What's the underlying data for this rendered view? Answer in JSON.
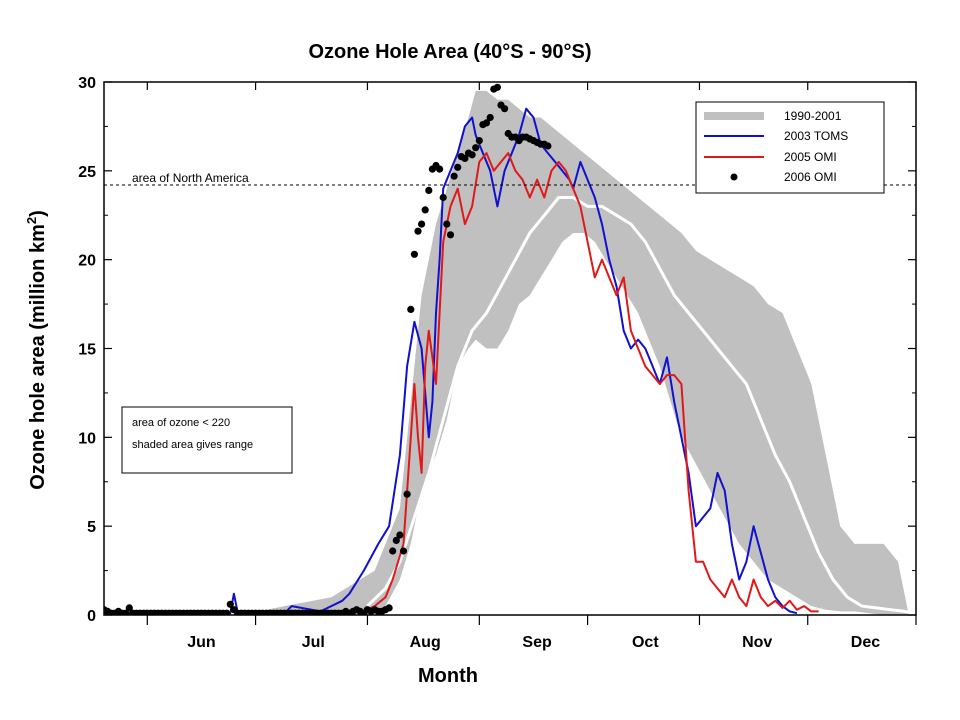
{
  "chart_data": {
    "type": "line",
    "title": "Ozone Hole Area (40°S - 90°S)",
    "xlabel": "Month",
    "ylabel_main": "Ozone hole area (million km",
    "ylabel_sup": "2",
    "ylabel_close": ")",
    "ylim": [
      0,
      30
    ],
    "xlim": [
      140,
      365
    ],
    "yticks": [
      "0",
      "5",
      "10",
      "15",
      "20",
      "25",
      "30"
    ],
    "months": [
      "Jun",
      "Jul",
      "Aug",
      "Sep",
      "Oct",
      "Nov",
      "Dec"
    ],
    "month_center_days": [
      167,
      198,
      229,
      260,
      290,
      321,
      351
    ],
    "month_boundary_days": [
      152,
      182,
      213,
      244,
      274,
      305,
      335,
      365
    ],
    "legend_position": "top-right",
    "legend": [
      "1990-2001",
      "2003 TOMS",
      "2005 OMI",
      "2006 OMI"
    ],
    "reference_line": {
      "value": 24.2,
      "label": "area of North America"
    },
    "note": [
      "area of ozone < 220",
      "shaded area gives range"
    ],
    "colors": {
      "range": "#c0c0c0",
      "mean": "#ffffff",
      "toms2003": "#1010d0",
      "omi2005": "#e01818",
      "omi2006": "#000000"
    },
    "series": [
      {
        "name": "1990-2001",
        "kind": "range",
        "x": [
          168,
          178,
          190,
          203,
          215,
          218,
          222,
          225,
          228,
          232,
          235,
          238,
          241,
          243,
          246,
          249,
          252,
          255,
          258,
          261,
          264,
          267,
          270,
          273,
          276,
          279,
          282,
          285,
          288,
          291,
          294,
          297,
          300,
          304,
          308,
          312,
          316,
          320,
          324,
          328,
          332,
          336,
          340,
          344,
          348,
          352,
          356,
          360,
          363
        ],
        "lower": [
          0,
          0,
          0,
          0,
          0,
          0.5,
          2,
          4,
          7,
          9,
          11,
          14,
          15,
          15.5,
          15,
          15,
          16,
          17.5,
          18,
          19,
          20,
          21,
          21.5,
          21.5,
          21,
          20,
          19,
          18,
          17,
          15.5,
          14,
          12,
          10,
          8.5,
          7,
          5.5,
          4,
          3,
          2,
          1.5,
          1,
          0.5,
          0.3,
          0.2,
          0.2,
          0.1,
          0,
          0,
          0
        ],
        "upper": [
          0,
          0,
          0.5,
          1,
          2.5,
          4,
          6,
          12,
          18,
          22,
          24,
          26,
          28,
          29.5,
          29.5,
          29,
          29,
          28.5,
          28,
          28,
          27.5,
          27,
          26.5,
          26,
          25.5,
          25,
          24.5,
          24,
          23.5,
          23,
          22.5,
          22,
          21.5,
          20.5,
          20,
          19.5,
          19,
          18.5,
          17.5,
          17,
          15,
          13,
          9,
          5,
          4,
          4,
          4,
          3,
          0
        ]
      },
      {
        "name": "1990-2001 mean",
        "kind": "mean",
        "x": [
          213,
          218,
          222,
          226,
          230,
          234,
          238,
          242,
          246,
          250,
          254,
          258,
          262,
          266,
          270,
          274,
          278,
          282,
          286,
          290,
          294,
          298,
          302,
          306,
          310,
          314,
          318,
          322,
          326,
          330,
          334,
          338,
          342,
          346,
          350,
          354,
          358,
          362,
          364
        ],
        "y": [
          0.5,
          1.5,
          3,
          5.5,
          8,
          11,
          14,
          16,
          17,
          18.5,
          20,
          21.5,
          22.5,
          23.5,
          23.5,
          23,
          23,
          22.5,
          22,
          21,
          19.5,
          18,
          17,
          16,
          15,
          14,
          13,
          11,
          9,
          7.5,
          5.5,
          3.5,
          2,
          1,
          0.5,
          0.4,
          0.3,
          0.2,
          0.1
        ]
      },
      {
        "name": "2003 TOMS",
        "kind": "line",
        "x": [
          140,
          165,
          175,
          176,
          177,
          185,
          190,
          192,
          200,
          206,
          208,
          212,
          216,
          219,
          222,
          224,
          226,
          228,
          230,
          231,
          232,
          233,
          234,
          236,
          238,
          240,
          242,
          243,
          245,
          247,
          249,
          251,
          253,
          255,
          257,
          259,
          261,
          263,
          265,
          267,
          269,
          270,
          272,
          274,
          276,
          278,
          280,
          282,
          284,
          286,
          288,
          290,
          292,
          294,
          296,
          298,
          300,
          302,
          304,
          306,
          308,
          310,
          312,
          314,
          316,
          318,
          320,
          322,
          324,
          326,
          328,
          330,
          332
        ],
        "y": [
          0.1,
          0.1,
          0.1,
          1.2,
          0.2,
          0.1,
          0.1,
          0.5,
          0.2,
          0.8,
          1.2,
          2.5,
          4,
          5,
          9,
          14,
          16.5,
          15,
          10,
          12,
          17,
          20,
          24,
          25,
          26,
          27.5,
          28,
          27,
          26,
          25,
          23,
          25,
          26,
          27,
          28.5,
          28,
          26.5,
          26,
          25.5,
          25,
          24.5,
          24,
          25.5,
          24.5,
          23.5,
          22,
          20,
          18.5,
          16,
          15,
          15.5,
          15,
          14,
          13,
          14.5,
          12,
          10,
          8,
          5,
          5.5,
          6,
          8,
          7,
          4,
          2,
          3,
          5,
          3.5,
          2,
          1,
          0.5,
          0.2,
          0.1
        ]
      },
      {
        "name": "2005 OMI",
        "kind": "line",
        "x": [
          212,
          215,
          218,
          220,
          223,
          225,
          226,
          227,
          228,
          229,
          230,
          232,
          233,
          234,
          236,
          238,
          240,
          242,
          244,
          246,
          248,
          250,
          252,
          254,
          256,
          258,
          260,
          262,
          264,
          266,
          268,
          270,
          272,
          274,
          276,
          278,
          280,
          282,
          284,
          286,
          288,
          290,
          292,
          294,
          296,
          298,
          300,
          302,
          304,
          306,
          308,
          310,
          312,
          314,
          316,
          318,
          320,
          322,
          324,
          326,
          328,
          330,
          332,
          334,
          336,
          338
        ],
        "y": [
          0.2,
          0.5,
          1,
          2,
          4,
          10,
          13,
          10,
          8,
          14,
          16,
          13,
          17,
          21,
          23,
          24,
          22,
          23,
          25.5,
          26,
          25,
          25.5,
          26,
          25,
          24.5,
          23.5,
          24.5,
          23.5,
          25,
          25.5,
          25,
          24,
          23,
          21,
          19,
          20,
          19,
          18,
          19,
          16,
          15,
          14,
          13.5,
          13,
          13.5,
          13.5,
          13,
          7,
          3,
          3,
          2,
          1.5,
          1,
          2,
          1,
          0.5,
          2,
          1,
          0.5,
          0.8,
          0.4,
          0.8,
          0.3,
          0.5,
          0.2,
          0.2
        ]
      },
      {
        "name": "2006 OMI",
        "kind": "scatter",
        "x": [
          140,
          141,
          142,
          143,
          144,
          145,
          146,
          147,
          148,
          149,
          150,
          151,
          152,
          153,
          154,
          155,
          156,
          157,
          158,
          159,
          160,
          161,
          162,
          163,
          164,
          165,
          166,
          167,
          168,
          169,
          170,
          171,
          172,
          173,
          174,
          175,
          176,
          177,
          178,
          179,
          180,
          181,
          182,
          183,
          184,
          185,
          186,
          187,
          188,
          189,
          190,
          191,
          192,
          193,
          194,
          195,
          196,
          197,
          198,
          199,
          200,
          201,
          202,
          203,
          204,
          205,
          206,
          207,
          208,
          209,
          210,
          211,
          212,
          213,
          214,
          215,
          216,
          217,
          218,
          219,
          220,
          221,
          222,
          223,
          224,
          225,
          226,
          227,
          228,
          229,
          230,
          231,
          232,
          233,
          234,
          235,
          236,
          237,
          238,
          239,
          240,
          241,
          242,
          243,
          244,
          245,
          246,
          247,
          248,
          249,
          250,
          251,
          252,
          253,
          254,
          255,
          256,
          257,
          258,
          259,
          260,
          261,
          262,
          263
        ],
        "y": [
          0.3,
          0.2,
          0.1,
          0.1,
          0.2,
          0.1,
          0.1,
          0.4,
          0.1,
          0.1,
          0.1,
          0.1,
          0.1,
          0.1,
          0.1,
          0.1,
          0.1,
          0.1,
          0.1,
          0.1,
          0.1,
          0.1,
          0.1,
          0.1,
          0.1,
          0.1,
          0.1,
          0.1,
          0.1,
          0.1,
          0.1,
          0.1,
          0.1,
          0.1,
          0.1,
          0.6,
          0.3,
          0.1,
          0.1,
          0.1,
          0.1,
          0.1,
          0.1,
          0.1,
          0.1,
          0.1,
          0.1,
          0.1,
          0.1,
          0.1,
          0.1,
          0.1,
          0.1,
          0.1,
          0.1,
          0.1,
          0.1,
          0.1,
          0.1,
          0.1,
          0.1,
          0.1,
          0.1,
          0.1,
          0.1,
          0.1,
          0.1,
          0.2,
          0.1,
          0.2,
          0.3,
          0.2,
          0.1,
          0.3,
          0.2,
          0.3,
          0.2,
          0.2,
          0.3,
          0.4,
          3.6,
          4.2,
          4.5,
          3.6,
          6.8,
          17.2,
          20.3,
          21.6,
          22.0,
          22.8,
          23.9,
          25.1,
          25.3,
          25.1,
          23.5,
          22.0,
          21.4,
          24.7,
          25.2,
          25.8,
          25.7,
          26.0,
          25.9,
          26.3,
          26.7,
          27.6,
          27.7,
          28.0,
          29.6,
          29.7,
          28.7,
          28.5,
          27.1,
          26.9,
          26.9,
          26.7,
          26.9,
          26.9,
          26.8,
          26.7,
          26.6,
          26.5,
          26.5,
          26.4
        ]
      }
    ]
  }
}
